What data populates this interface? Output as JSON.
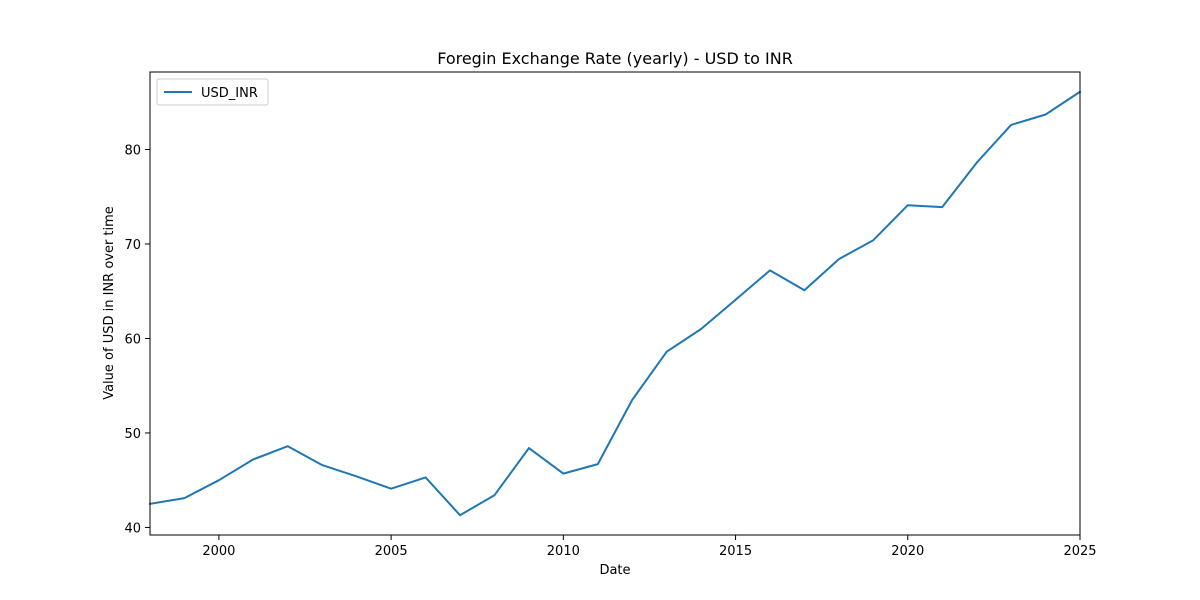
{
  "chart_data": {
    "type": "line",
    "title": "Foregin Exchange Rate (yearly) - USD to INR",
    "xlabel": "Date",
    "ylabel": "Value of USD in INR over time",
    "xlim": [
      1998,
      2025
    ],
    "ylim": [
      39.2,
      88.2
    ],
    "x_ticks": [
      2000,
      2005,
      2010,
      2015,
      2020,
      2025
    ],
    "y_ticks": [
      40,
      50,
      60,
      70,
      80
    ],
    "grid": false,
    "legend_position": "upper-left",
    "series": [
      {
        "name": "USD_INR",
        "color": "#1f77b4",
        "x": [
          1998,
          1999,
          2000,
          2001,
          2002,
          2003,
          2004,
          2005,
          2006,
          2007,
          2008,
          2009,
          2010,
          2011,
          2012,
          2013,
          2014,
          2015,
          2016,
          2017,
          2018,
          2019,
          2020,
          2021,
          2022,
          2023,
          2024,
          2025
        ],
        "values": [
          42.5,
          43.1,
          45.0,
          47.2,
          48.6,
          46.6,
          45.4,
          44.1,
          45.3,
          41.3,
          43.4,
          48.4,
          45.7,
          46.7,
          53.5,
          58.6,
          61.0,
          64.1,
          67.2,
          65.1,
          68.4,
          70.4,
          74.1,
          73.9,
          78.6,
          82.6,
          83.7,
          86.1
        ]
      }
    ]
  }
}
